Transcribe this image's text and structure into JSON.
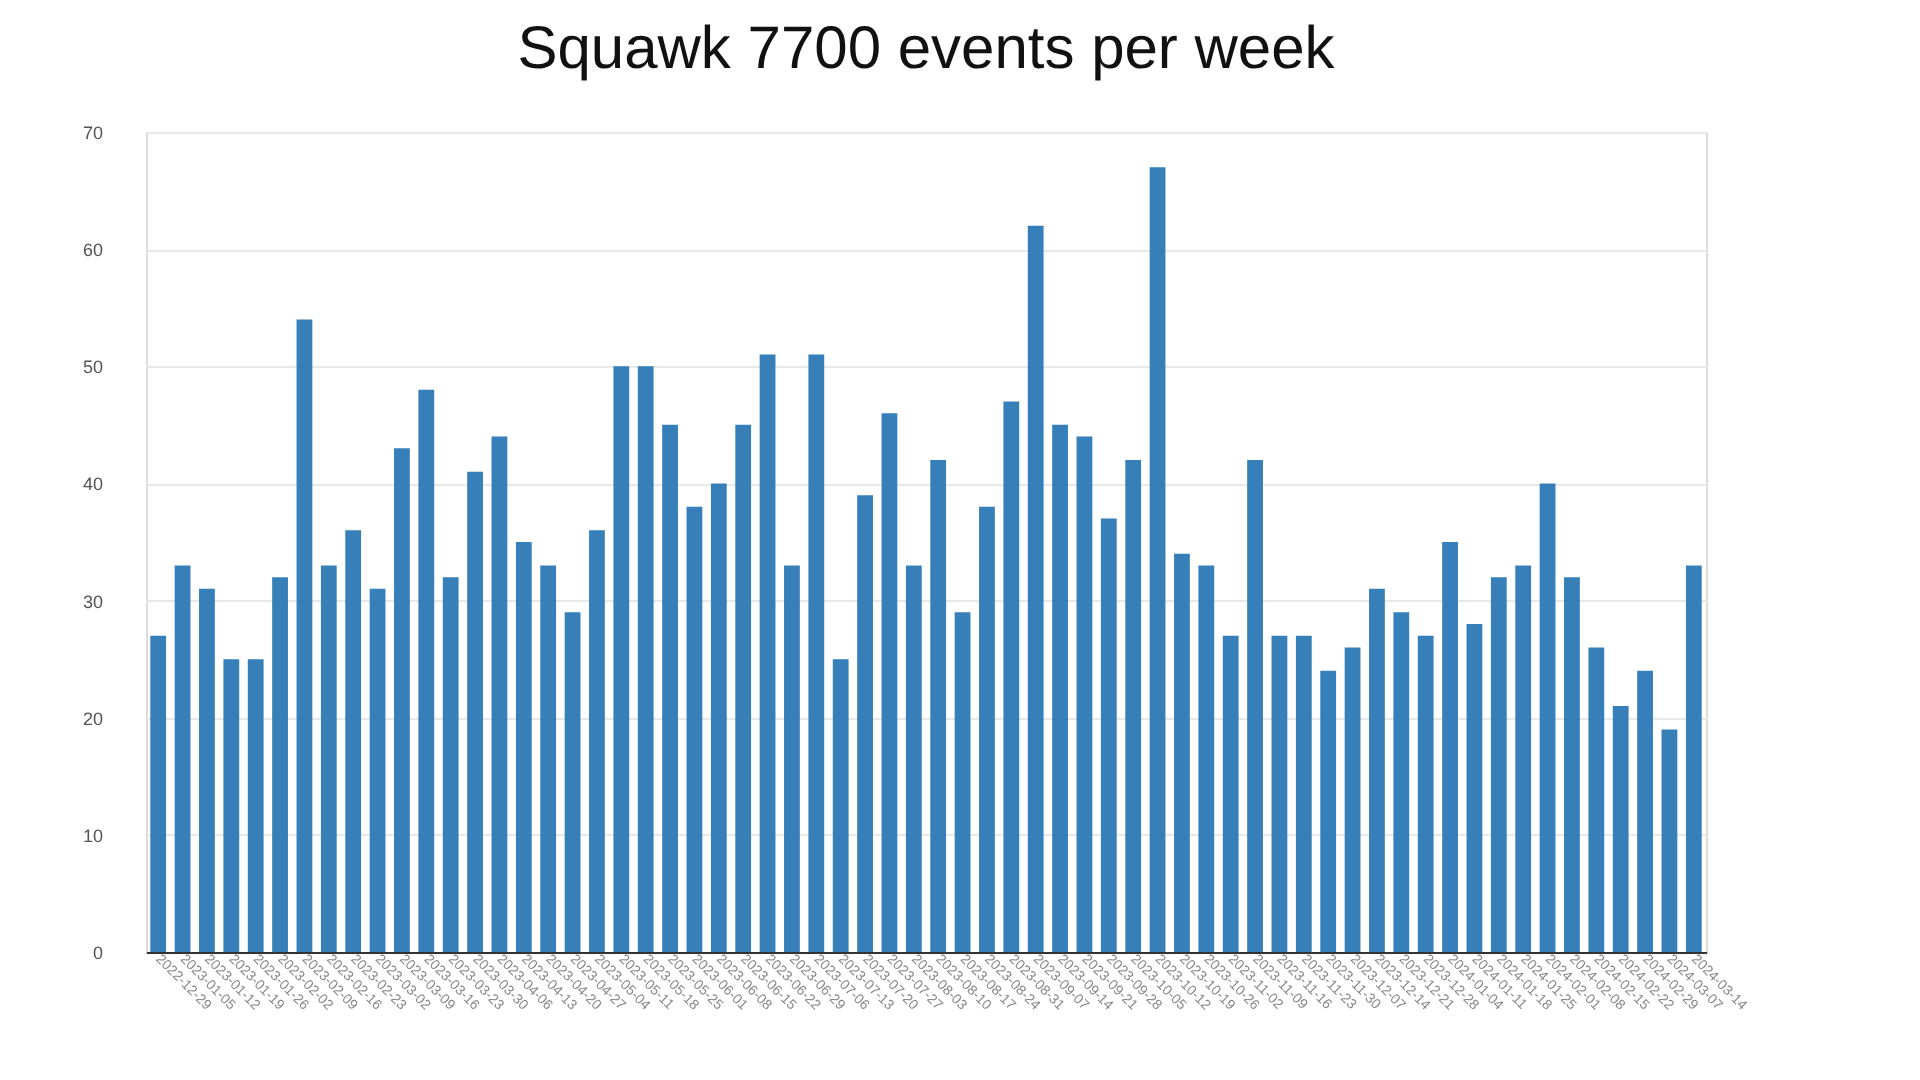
{
  "chart_data": {
    "type": "bar",
    "title": "Squawk 7700 events per week",
    "categories": [
      "2022-12-29",
      "2023-01-05",
      "2023-01-12",
      "2023-01-19",
      "2023-01-26",
      "2023-02-02",
      "2023-02-09",
      "2023-02-16",
      "2023-02-23",
      "2023-03-02",
      "2023-03-09",
      "2023-03-16",
      "2023-03-23",
      "2023-03-30",
      "2023-04-06",
      "2023-04-13",
      "2023-04-20",
      "2023-04-27",
      "2023-05-04",
      "2023-05-11",
      "2023-05-18",
      "2023-05-25",
      "2023-06-01",
      "2023-06-08",
      "2023-06-15",
      "2023-06-22",
      "2023-06-29",
      "2023-07-06",
      "2023-07-13",
      "2023-07-20",
      "2023-07-27",
      "2023-08-03",
      "2023-08-10",
      "2023-08-17",
      "2023-08-24",
      "2023-08-31",
      "2023-09-07",
      "2023-09-14",
      "2023-09-21",
      "2023-09-28",
      "2023-10-05",
      "2023-10-12",
      "2023-10-19",
      "2023-10-26",
      "2023-11-02",
      "2023-11-09",
      "2023-11-16",
      "2023-11-23",
      "2023-11-30",
      "2023-12-07",
      "2023-12-14",
      "2023-12-21",
      "2023-12-28",
      "2024-01-04",
      "2024-01-11",
      "2024-01-18",
      "2024-01-25",
      "2024-02-01",
      "2024-02-08",
      "2024-02-15",
      "2024-02-22",
      "2024-02-29",
      "2024-03-07",
      "2024-03-14"
    ],
    "values": [
      27,
      33,
      31,
      25,
      25,
      32,
      54,
      33,
      36,
      31,
      43,
      48,
      32,
      41,
      44,
      35,
      33,
      29,
      36,
      50,
      50,
      45,
      38,
      40,
      45,
      51,
      33,
      51,
      25,
      39,
      46,
      33,
      42,
      29,
      38,
      47,
      62,
      45,
      44,
      37,
      42,
      67,
      34,
      33,
      27,
      42,
      27,
      27,
      24,
      26,
      31,
      29,
      27,
      35,
      28,
      32,
      33,
      40,
      32,
      26,
      21,
      24,
      19,
      33
    ],
    "color": "#367fb9",
    "ylim": [
      0,
      70
    ],
    "yticks": [
      0,
      10,
      20,
      30,
      40,
      50,
      60,
      70
    ],
    "grid": "y"
  }
}
